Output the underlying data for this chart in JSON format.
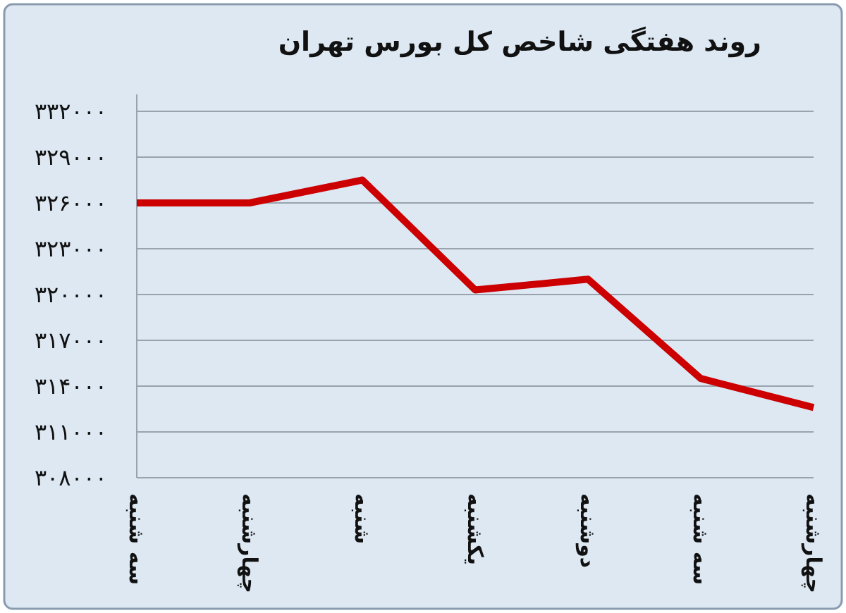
{
  "chart_data": {
    "type": "line",
    "title": "روند هفتگی شاخص کل بورس تهران",
    "categories": [
      "سه شنبه",
      "چهارشنبه",
      "شنبه",
      "یکشنبه",
      "دوشنبه",
      "سه شنبه",
      "چهارشنبه"
    ],
    "series": [
      {
        "color": "#cc0000",
        "values": [
          326000,
          326000,
          327500,
          320300,
          321000,
          314500,
          312600
        ]
      }
    ],
    "ylim": [
      308000,
      332000
    ],
    "yticks": [
      {
        "value": 308000,
        "label": "۳۰۸۰۰۰"
      },
      {
        "value": 311000,
        "label": "۳۱۱۰۰۰"
      },
      {
        "value": 314000,
        "label": "۳۱۴۰۰۰"
      },
      {
        "value": 317000,
        "label": "۳۱۷۰۰۰"
      },
      {
        "value": 320000,
        "label": "۳۲۰۰۰۰"
      },
      {
        "value": 323000,
        "label": "۳۲۳۰۰۰"
      },
      {
        "value": 326000,
        "label": "۳۲۶۰۰۰"
      },
      {
        "value": 329000,
        "label": "۳۲۹۰۰۰"
      },
      {
        "value": 332000,
        "label": "۳۳۲۰۰۰"
      }
    ],
    "grid": "y"
  }
}
